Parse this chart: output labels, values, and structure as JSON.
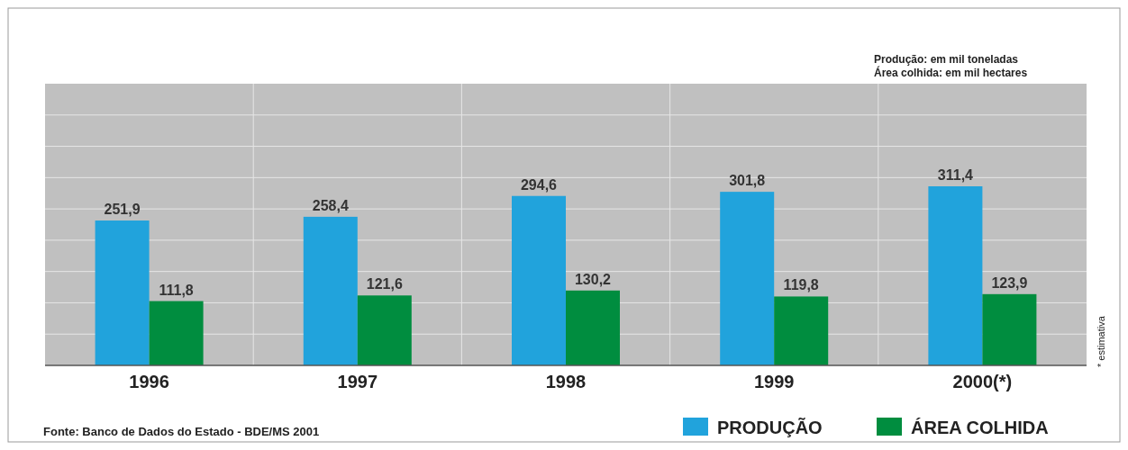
{
  "chart_data": {
    "type": "bar",
    "categories": [
      "1996",
      "1997",
      "1998",
      "1999",
      "2000(*)"
    ],
    "series": [
      {
        "name": "PRODUÇÃO",
        "color": "#21a3dc",
        "values": [
          251.9,
          258.4,
          294.6,
          301.8,
          311.4
        ],
        "value_labels": [
          "251,9",
          "258,4",
          "294,6",
          "301,8",
          "311,4"
        ]
      },
      {
        "name": "ÁREA COLHIDA",
        "color": "#008d3f",
        "values": [
          111.8,
          121.6,
          130.2,
          119.8,
          123.9
        ],
        "value_labels": [
          "111,8",
          "121,6",
          "130,2",
          "119,8",
          "123,9"
        ]
      }
    ],
    "grid": true,
    "legend": "bottom right",
    "tick_labels": "x",
    "annotations": [
      "Produção: em mil toneladas",
      "Área colhida: em mil hectares",
      "* estimativa",
      "Fonte: Banco de Dados do Estado - BDE/MS 2001"
    ]
  }
}
